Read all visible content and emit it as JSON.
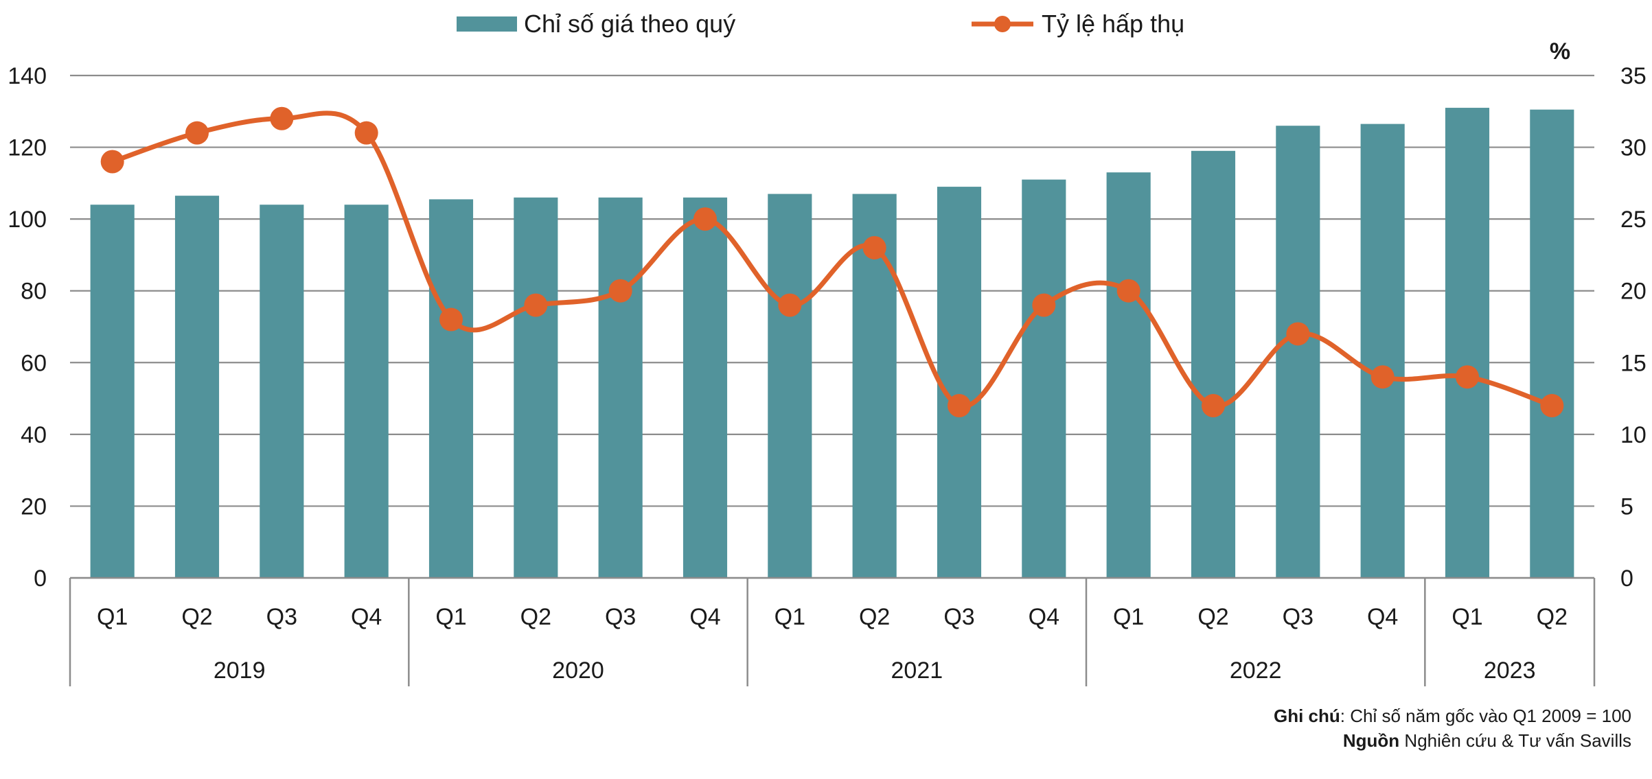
{
  "chart_data": {
    "type": "bar",
    "categories": [
      "Q1",
      "Q2",
      "Q3",
      "Q4",
      "Q1",
      "Q2",
      "Q3",
      "Q4",
      "Q1",
      "Q2",
      "Q3",
      "Q4",
      "Q1",
      "Q2",
      "Q3",
      "Q4",
      "Q1",
      "Q2"
    ],
    "groups": [
      {
        "label": "2019",
        "count": 4
      },
      {
        "label": "2020",
        "count": 4
      },
      {
        "label": "2021",
        "count": 4
      },
      {
        "label": "2022",
        "count": 4
      },
      {
        "label": "2023",
        "count": 2
      }
    ],
    "series": [
      {
        "name": "Chỉ số giá theo quý",
        "type": "bar",
        "axis": "left",
        "color": "#52939b",
        "values": [
          104,
          106.5,
          104,
          104,
          105.5,
          106,
          106,
          106,
          107,
          107,
          109,
          111,
          113,
          119,
          126,
          126.5,
          131,
          130.5
        ]
      },
      {
        "name": "Tỷ lệ hấp thụ",
        "type": "line",
        "axis": "right",
        "color": "#e0622a",
        "values": [
          29,
          31,
          32,
          31,
          18,
          19,
          20,
          25,
          19,
          23,
          12,
          19,
          20,
          12,
          17,
          14,
          14,
          12
        ]
      }
    ],
    "y_left": {
      "min": 0,
      "max": 140,
      "ticks": [
        "0",
        "20",
        "40",
        "60",
        "80",
        "100",
        "120",
        "140"
      ]
    },
    "y_right": {
      "min": 0,
      "max": 35,
      "ticks": [
        "0",
        "5",
        "10",
        "15",
        "20",
        "25",
        "30",
        "35"
      ],
      "unit": "%"
    },
    "legend": "top-center",
    "grid": true
  },
  "notes": {
    "note_label": "Ghi chú",
    "note_text": ": Chỉ số năm gốc vào Q1 2009 = 100",
    "source_label": "Nguồn",
    "source_text": " Nghiên cứu & Tư vấn Savills"
  }
}
